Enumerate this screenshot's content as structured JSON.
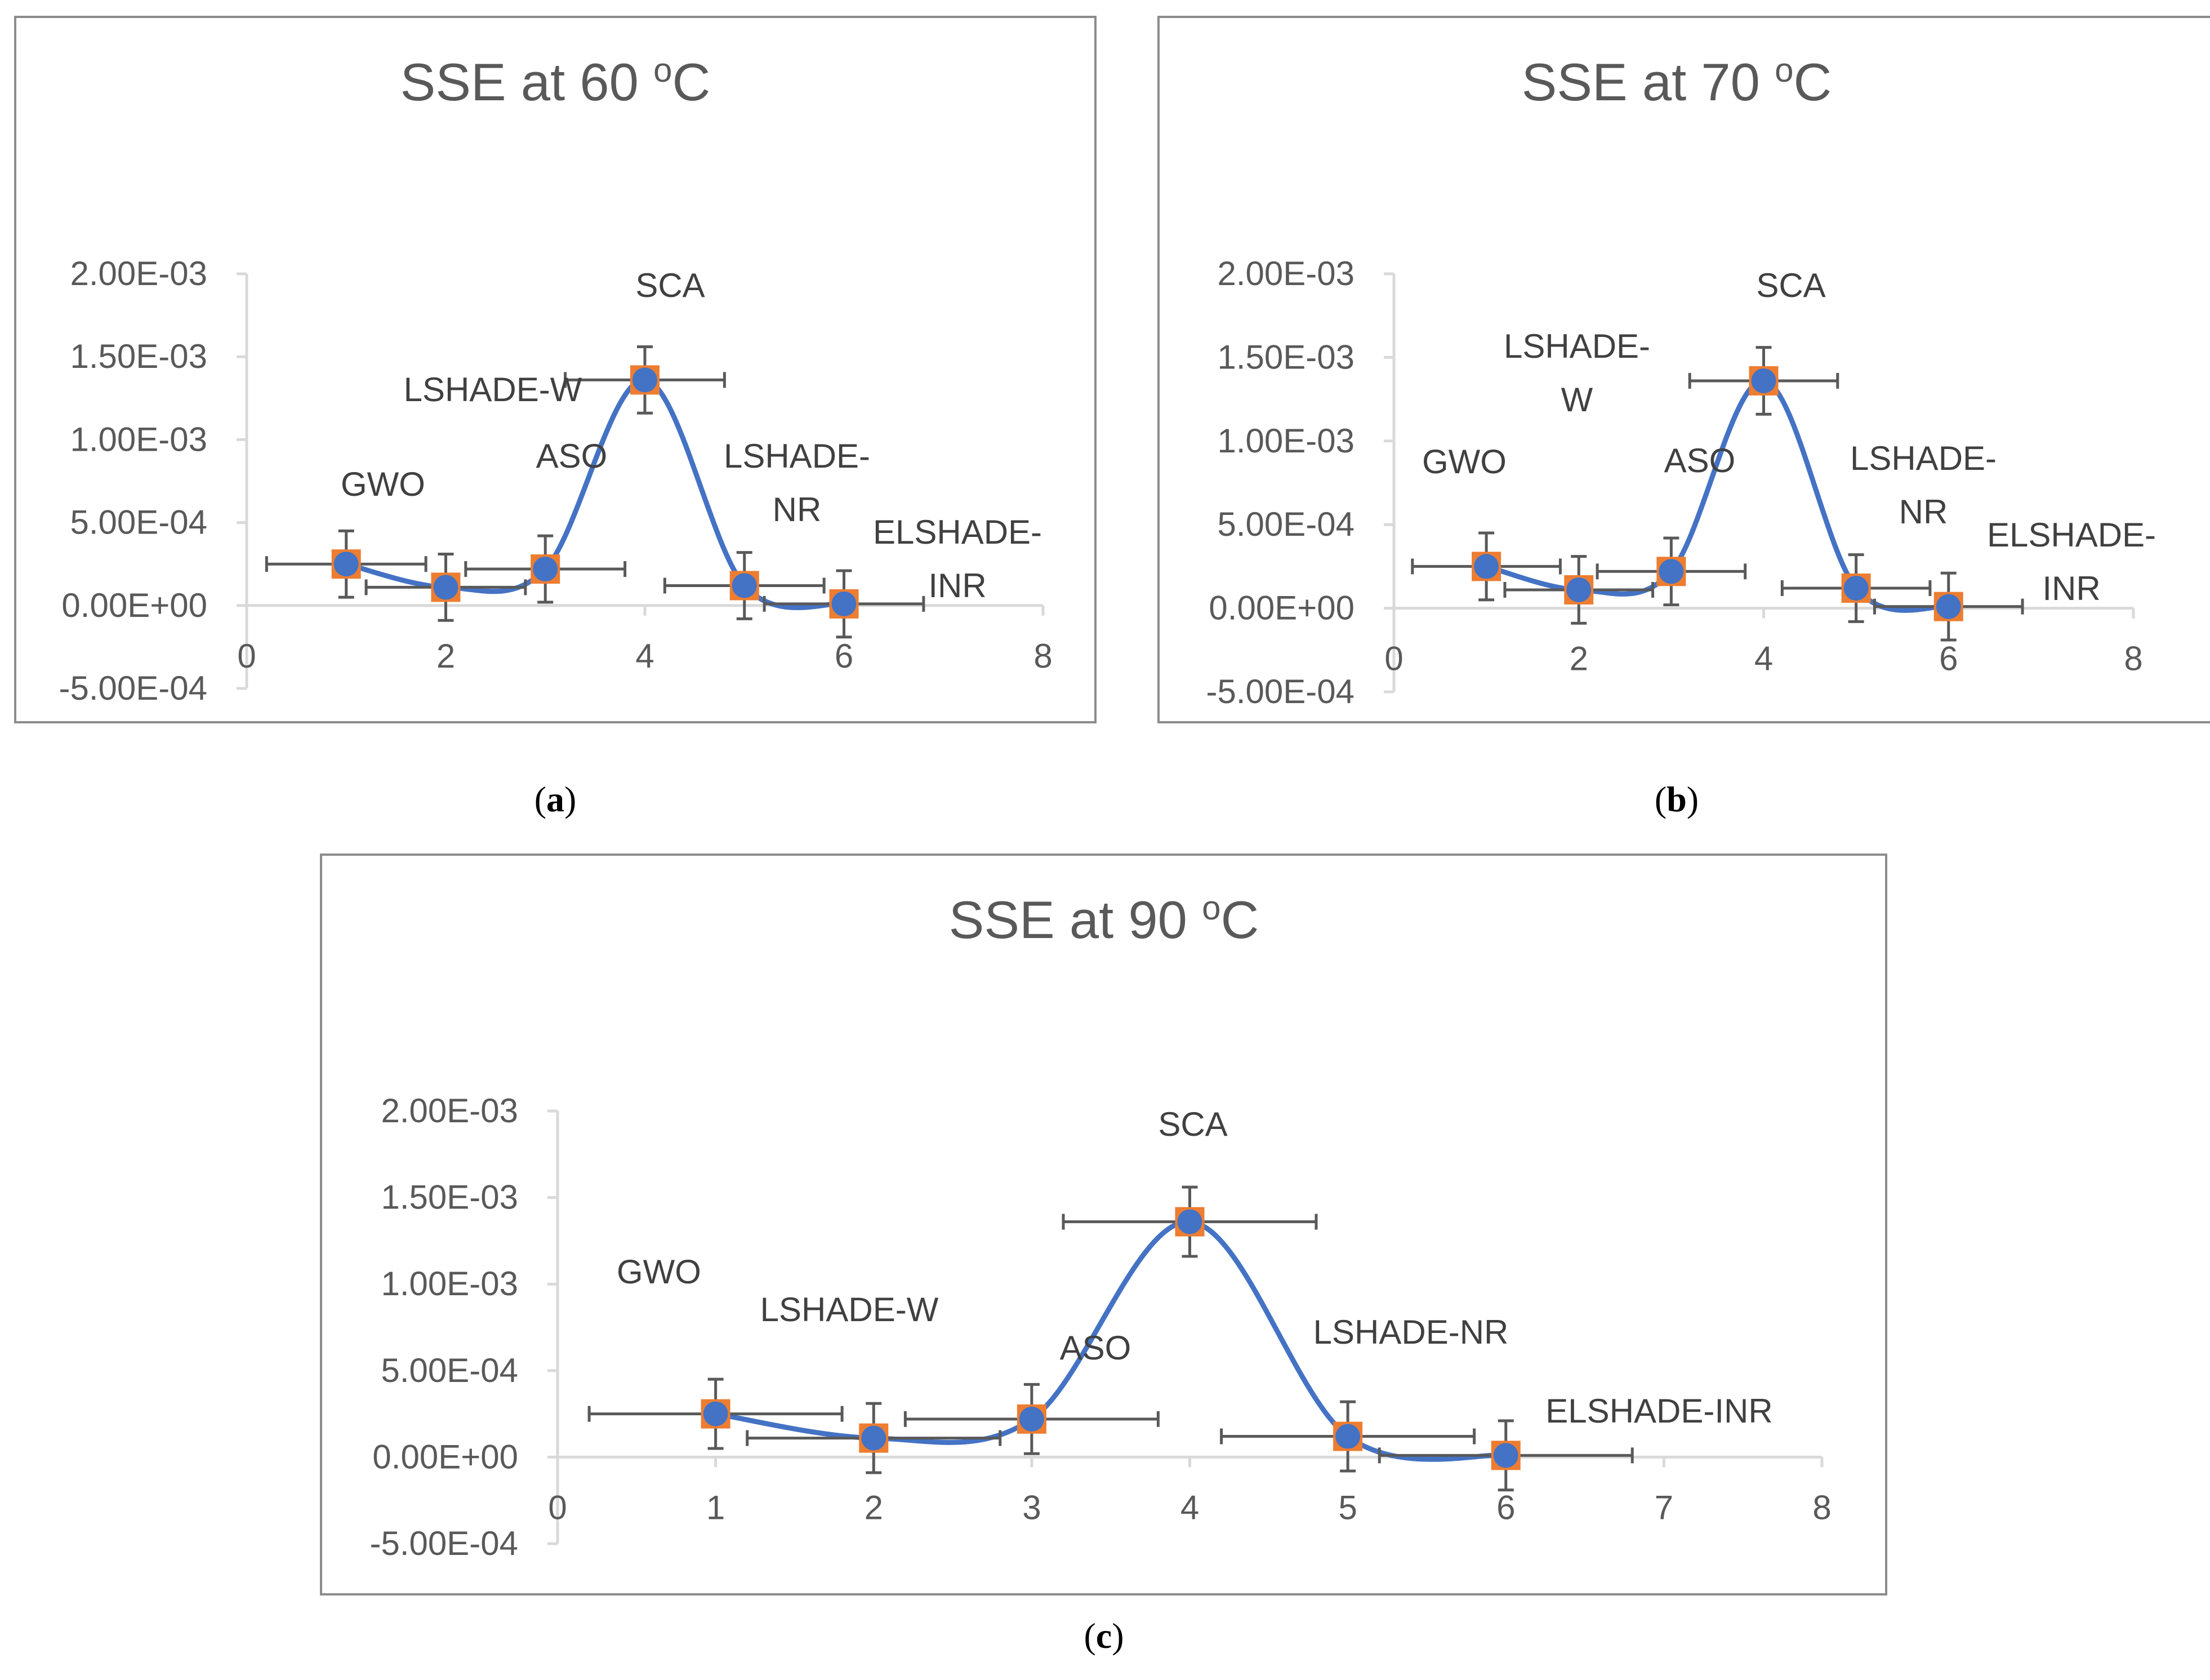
{
  "figure": {
    "captions": [
      "(a)",
      "(b)",
      "(c)"
    ],
    "caption_letters": [
      "a",
      "b",
      "c"
    ]
  },
  "chart_data": [
    {
      "type": "scatter",
      "panel": "a",
      "title": "SSE at 60 °C",
      "title_main": "SSE at 60 ",
      "title_sup": "o",
      "title_unit": "C",
      "x": [
        1,
        2,
        3,
        4,
        5,
        6
      ],
      "y": [
        0.00025,
        0.00011,
        0.00022,
        0.00136,
        0.00012,
        1e-05
      ],
      "x_error": 0.8,
      "y_error": 0.0002,
      "xlim": [
        0,
        8
      ],
      "ylim": [
        -0.0005,
        0.002
      ],
      "xticks": [
        0,
        2,
        4,
        6,
        8
      ],
      "xtick_labels": [
        "0",
        "2",
        "4",
        "6",
        "8"
      ],
      "yticks": [
        0.002,
        0.0015,
        0.001,
        0.0005,
        0.0,
        -0.0005
      ],
      "ytick_labels": [
        "2.00E-03",
        "1.50E-03",
        "1.00E-03",
        "5.00E-04",
        "0.00E+00",
        "-5.00E-04"
      ],
      "point_labels": [
        [
          "GWO"
        ],
        [
          "LSHADE-W"
        ],
        [
          "ASO"
        ],
        [
          "SCA"
        ],
        [
          "LSHADE-",
          "NR"
        ],
        [
          "ELSHADE-",
          "INR"
        ]
      ],
      "line_color": "#4472C4",
      "marker_fill": "#4472C4",
      "marker_square": "#ED7D31",
      "errorbar_color": "#595959"
    },
    {
      "type": "scatter",
      "panel": "b",
      "title": "SSE at 70 °C",
      "title_main": "SSE at 70 ",
      "title_sup": "o",
      "title_unit": "C",
      "x": [
        1,
        2,
        3,
        4,
        5,
        6
      ],
      "y": [
        0.00025,
        0.00011,
        0.00022,
        0.00136,
        0.00012,
        1e-05
      ],
      "x_error": 0.8,
      "y_error": 0.0002,
      "xlim": [
        0,
        8
      ],
      "ylim": [
        -0.0005,
        0.002
      ],
      "xticks": [
        0,
        2,
        4,
        6,
        8
      ],
      "xtick_labels": [
        "0",
        "2",
        "4",
        "6",
        "8"
      ],
      "yticks": [
        0.002,
        0.0015,
        0.001,
        0.0005,
        0.0,
        -0.0005
      ],
      "ytick_labels": [
        "2.00E-03",
        "1.50E-03",
        "1.00E-03",
        "5.00E-04",
        "0.00E+00",
        "-5.00E-04"
      ],
      "point_labels": [
        [
          "GWO"
        ],
        [
          "LSHADE-",
          "W"
        ],
        [
          "ASO"
        ],
        [
          "SCA"
        ],
        [
          "LSHADE-",
          "NR"
        ],
        [
          "ELSHADE-",
          "INR"
        ]
      ],
      "line_color": "#4472C4",
      "marker_fill": "#4472C4",
      "marker_square": "#ED7D31",
      "errorbar_color": "#595959"
    },
    {
      "type": "scatter",
      "panel": "c",
      "title": "SSE at 90 °C",
      "title_main": "SSE at 90 ",
      "title_sup": "o",
      "title_unit": "C",
      "x": [
        1,
        2,
        3,
        4,
        5,
        6
      ],
      "y": [
        0.00025,
        0.00011,
        0.00022,
        0.00136,
        0.00012,
        1e-05
      ],
      "x_error": 0.8,
      "y_error": 0.0002,
      "xlim": [
        0,
        8
      ],
      "ylim": [
        -0.0005,
        0.002
      ],
      "xticks": [
        0,
        1,
        2,
        3,
        4,
        5,
        6,
        7,
        8
      ],
      "xtick_labels": [
        "0",
        "1",
        "2",
        "3",
        "4",
        "5",
        "6",
        "7",
        "8"
      ],
      "yticks": [
        0.002,
        0.0015,
        0.001,
        0.0005,
        0.0,
        -0.0005
      ],
      "ytick_labels": [
        "2.00E-03",
        "1.50E-03",
        "1.00E-03",
        "5.00E-04",
        "0.00E+00",
        "-5.00E-04"
      ],
      "point_labels": [
        [
          "GWO"
        ],
        [
          "LSHADE-W"
        ],
        [
          "ASO"
        ],
        [
          "SCA"
        ],
        [
          "LSHADE-NR"
        ],
        [
          "ELSHADE-INR"
        ]
      ],
      "line_color": "#4472C4",
      "marker_fill": "#4472C4",
      "marker_square": "#ED7D31",
      "errorbar_color": "#595959"
    }
  ]
}
